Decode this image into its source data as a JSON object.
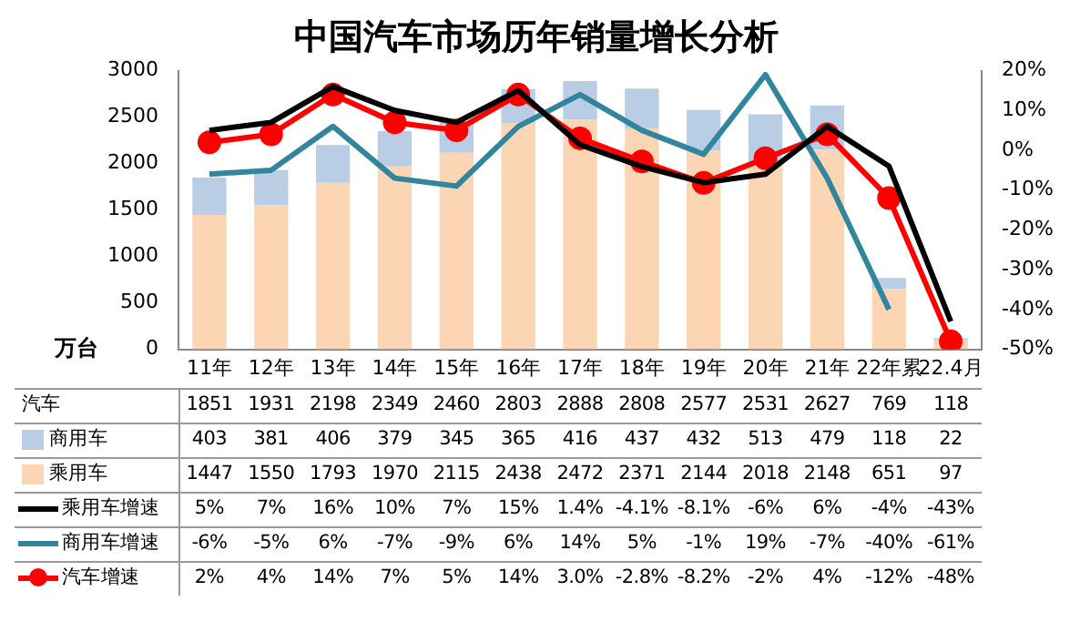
{
  "chart_data": {
    "type": "bar",
    "title": "中国汽车市场历年销量增长分析",
    "ylabel": "万台",
    "categories": [
      "11年",
      "12年",
      "13年",
      "14年",
      "15年",
      "16年",
      "17年",
      "18年",
      "19年",
      "20年",
      "21年",
      "22年累",
      "22.4月"
    ],
    "stacked": true,
    "grid": false,
    "legend": "bottom",
    "data_labels": true,
    "ylim": [
      0,
      3000
    ],
    "yticks": [
      0,
      500,
      1000,
      1500,
      2000,
      2500,
      3000
    ],
    "y2lim": [
      -50,
      20
    ],
    "y2ticks": [
      {
        "value": -50,
        "label": "-50%"
      },
      {
        "value": -40,
        "label": "-40%"
      },
      {
        "value": -30,
        "label": "-30%"
      },
      {
        "value": -20,
        "label": "-20%"
      },
      {
        "value": -10,
        "label": "-10%"
      },
      {
        "value": 0,
        "label": "0%"
      },
      {
        "value": 10,
        "label": "10%"
      },
      {
        "value": 20,
        "label": "20%"
      }
    ],
    "annotations": [
      "汽车"
    ],
    "totals": [
      "1851",
      "1931",
      "2198",
      "2349",
      "2460",
      "2803",
      "2888",
      "2808",
      "2577",
      "2531",
      "2627",
      "769",
      "118"
    ],
    "series": [
      {
        "name": "乘用车",
        "color": "#fcd5b5",
        "values": [
          1447,
          1550,
          1793,
          1970,
          2115,
          2438,
          2472,
          2371,
          2144,
          2018,
          2148,
          651,
          97
        ]
      },
      {
        "name": "商用车",
        "color": "#b9cde5",
        "values": [
          403,
          381,
          406,
          379,
          345,
          365,
          416,
          437,
          432,
          513,
          479,
          118,
          22
        ]
      },
      {
        "name": "乘用车增速",
        "type": "line",
        "axis": "y2",
        "color": "#000000",
        "marker": "none",
        "values": [
          5,
          7,
          16,
          10,
          7,
          15,
          1.4,
          -4.1,
          -8.1,
          -6,
          6,
          -4,
          -43
        ],
        "value_labels": [
          "5%",
          "7%",
          "16%",
          "10%",
          "7%",
          "15%",
          "1.4%",
          "-4.1%",
          "-8.1%",
          "-6%",
          "6%",
          "-4%",
          "-43%"
        ]
      },
      {
        "name": "商用车增速",
        "type": "line",
        "axis": "y2",
        "color": "#31859c",
        "marker": "none",
        "values": [
          -6,
          -5,
          6,
          -7,
          -9,
          6,
          14,
          5,
          -1,
          19,
          -7,
          -40,
          null
        ],
        "value_labels": [
          "-6%",
          "-5%",
          "6%",
          "-7%",
          "-9%",
          "6%",
          "14%",
          "5%",
          "-1%",
          "19%",
          "-7%",
          "-40%",
          "-61%"
        ]
      },
      {
        "name": "汽车增速",
        "type": "line",
        "axis": "y2",
        "color": "#ff0000",
        "marker": "circle",
        "values": [
          2,
          4,
          14,
          7,
          5,
          14,
          3.0,
          -2.8,
          -8.2,
          -2,
          4,
          -12,
          -48
        ],
        "value_labels": [
          "2%",
          "4%",
          "14%",
          "7%",
          "5%",
          "14%",
          "3.0%",
          "-2.8%",
          "-8.2%",
          "-2%",
          "4%",
          "-12%",
          "-48%"
        ]
      }
    ]
  }
}
